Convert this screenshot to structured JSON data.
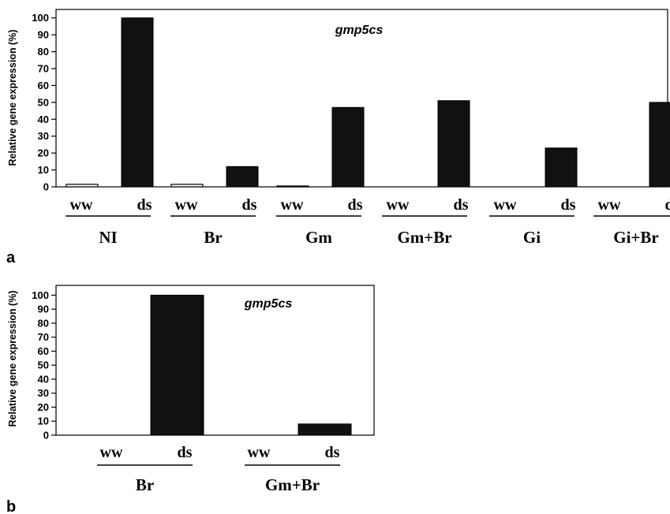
{
  "chart_data": [
    {
      "panel": "a",
      "type": "bar",
      "title": "gmp5cs",
      "ylabel": "Relative gene expression (%)",
      "ylim": [
        0,
        105
      ],
      "yticks": [
        0,
        10,
        20,
        30,
        40,
        50,
        60,
        70,
        80,
        90,
        100
      ],
      "groups": [
        "NI",
        "Br",
        "Gm",
        "Gm+Br",
        "Gi",
        "Gi+Br"
      ],
      "subcategories": [
        "ww",
        "ds"
      ],
      "values": [
        [
          1.5,
          100
        ],
        [
          1.5,
          12
        ],
        [
          0.5,
          47
        ],
        [
          0,
          51
        ],
        [
          0,
          23
        ],
        [
          0,
          50
        ]
      ],
      "bar_colors": {
        "ww": "#ffffff",
        "ds": "#111111"
      }
    },
    {
      "panel": "b",
      "type": "bar",
      "title": "gmp5cs",
      "ylabel": "Relative gene expression (%)",
      "ylim": [
        0,
        107
      ],
      "yticks": [
        0,
        10,
        20,
        30,
        40,
        50,
        60,
        70,
        80,
        90,
        100
      ],
      "groups": [
        "Br",
        "Gm+Br"
      ],
      "subcategories": [
        "ww",
        "ds"
      ],
      "values": [
        [
          0,
          100
        ],
        [
          0,
          8
        ]
      ],
      "bar_colors": {
        "ww": "#ffffff",
        "ds": "#111111"
      }
    }
  ]
}
